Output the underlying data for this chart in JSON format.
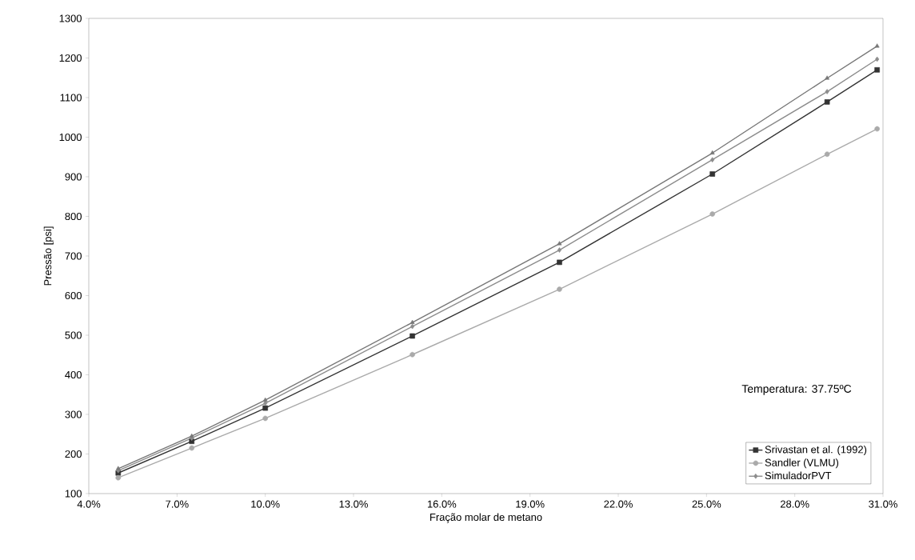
{
  "chart_data": {
    "type": "line",
    "xlabel": "Fração molar de metano",
    "ylabel": "Pressão [psi]",
    "x": [
      5,
      7.5,
      10,
      15,
      20,
      25.2,
      29.1,
      30.8
    ],
    "series": [
      {
        "name": "Srivastan et al. (1992)",
        "color": "#333333",
        "marker": "square",
        "values": [
          152,
          232,
          316,
          498,
          684,
          907,
          1089,
          1170
        ]
      },
      {
        "name": "Sandler (VLMU)",
        "color": "#aaaaaa",
        "marker": "circle",
        "values": [
          140,
          215,
          290,
          451,
          616,
          806,
          957,
          1021
        ]
      },
      {
        "color": "#777777",
        "marker": "triangle",
        "values": [
          163,
          245,
          336,
          532,
          731,
          960,
          1149,
          1230
        ]
      },
      {
        "name": "SimuladorPVT",
        "color": "#8c8c8c",
        "marker": "diamond",
        "values": [
          158,
          240,
          328,
          522,
          715,
          943,
          1115,
          1197
        ]
      }
    ],
    "xlim": [
      4,
      31
    ],
    "ylim": [
      100,
      1300
    ],
    "xticks": [
      {
        "value": 4,
        "label": "4.0%"
      },
      {
        "value": 7,
        "label": "7.0%"
      },
      {
        "value": 10,
        "label": "10.0%"
      },
      {
        "value": 13,
        "label": "13.0%"
      },
      {
        "value": 16,
        "label": "16.0%"
      },
      {
        "value": 19,
        "label": "19.0%"
      },
      {
        "value": 22,
        "label": "22.0%"
      },
      {
        "value": 25,
        "label": "25.0%"
      },
      {
        "value": 28,
        "label": "28.0%"
      },
      {
        "value": 31,
        "label": "31.0%"
      }
    ],
    "yticks": [
      100,
      200,
      300,
      400,
      500,
      600,
      700,
      800,
      900,
      1000,
      1100,
      1200,
      1300
    ],
    "annotations": [
      "Temperatura: 37.75ºC"
    ],
    "legend": "bottom right",
    "grid": false,
    "line_style": "solid"
  }
}
